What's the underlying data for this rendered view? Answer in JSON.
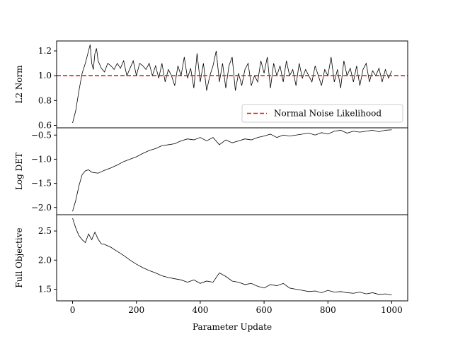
{
  "chart_data": [
    {
      "type": "line",
      "ylabel": "L2 Norm",
      "xlabel": "",
      "xlim": [
        -50,
        1050
      ],
      "ylim": [
        0.58,
        1.28
      ],
      "yticks": [
        0.6,
        0.8,
        1.0,
        1.2
      ],
      "ytick_labels": [
        "0.6",
        "0.8",
        "1.0",
        "1.2"
      ],
      "show_xticks": false,
      "series": [
        {
          "name": "",
          "color": "#000000",
          "x": [
            0,
            10,
            20,
            30,
            40,
            50,
            55,
            60,
            65,
            70,
            75,
            80,
            90,
            100,
            110,
            120,
            130,
            140,
            150,
            160,
            170,
            180,
            190,
            200,
            210,
            220,
            230,
            240,
            250,
            260,
            270,
            280,
            290,
            300,
            310,
            320,
            330,
            340,
            350,
            360,
            370,
            380,
            390,
            400,
            410,
            420,
            430,
            440,
            450,
            460,
            470,
            480,
            490,
            500,
            510,
            520,
            530,
            540,
            550,
            560,
            570,
            580,
            590,
            600,
            610,
            620,
            630,
            640,
            650,
            660,
            670,
            680,
            690,
            700,
            710,
            720,
            730,
            740,
            750,
            760,
            770,
            780,
            790,
            800,
            810,
            820,
            830,
            840,
            850,
            860,
            870,
            880,
            890,
            900,
            910,
            920,
            930,
            940,
            950,
            960,
            970,
            980,
            990,
            1000
          ],
          "y": [
            0.62,
            0.72,
            0.88,
            1.02,
            1.1,
            1.2,
            1.25,
            1.1,
            1.05,
            1.18,
            1.22,
            1.12,
            1.06,
            1.03,
            1.1,
            1.08,
            1.05,
            1.1,
            1.06,
            1.12,
            1.0,
            1.06,
            1.12,
            1.0,
            1.1,
            1.08,
            1.05,
            1.1,
            1.0,
            1.08,
            0.98,
            1.1,
            0.95,
            1.05,
            1.0,
            0.92,
            1.08,
            1.0,
            1.15,
            0.98,
            1.06,
            0.9,
            1.18,
            0.95,
            1.1,
            0.88,
            1.0,
            1.08,
            1.2,
            0.95,
            1.1,
            0.9,
            1.08,
            1.15,
            0.88,
            1.02,
            0.92,
            1.05,
            1.1,
            0.92,
            1.0,
            0.95,
            1.12,
            1.02,
            1.15,
            0.9,
            1.1,
            1.0,
            1.08,
            0.95,
            1.12,
            1.0,
            1.05,
            0.92,
            1.1,
            0.98,
            1.05,
            1.0,
            0.95,
            1.08,
            1.0,
            0.92,
            1.05,
            1.0,
            1.15,
            0.95,
            1.05,
            0.9,
            1.12,
            1.0,
            1.06,
            0.95,
            1.08,
            0.92,
            1.05,
            1.1,
            0.95,
            1.04,
            1.0,
            1.06,
            0.95,
            1.05,
            0.98,
            1.04
          ]
        },
        {
          "name": "Normal Noise Likelihood",
          "color": "#e31a1c",
          "dashed": true,
          "x": [
            -50,
            1050
          ],
          "y": [
            1.0,
            1.0
          ]
        }
      ],
      "legend": "lower-right"
    },
    {
      "type": "line",
      "ylabel": "Log DET",
      "xlabel": "",
      "xlim": [
        -50,
        1050
      ],
      "ylim": [
        -2.15,
        -0.35
      ],
      "yticks": [
        -2.0,
        -1.5,
        -1.0,
        -0.5
      ],
      "ytick_labels": [
        "−2.0",
        "−1.5",
        "−1.0",
        "−0.5"
      ],
      "show_xticks": false,
      "series": [
        {
          "name": "",
          "color": "#000000",
          "x": [
            0,
            10,
            20,
            30,
            40,
            50,
            60,
            70,
            80,
            90,
            100,
            120,
            140,
            160,
            180,
            200,
            220,
            240,
            260,
            280,
            300,
            320,
            340,
            360,
            380,
            400,
            420,
            440,
            460,
            480,
            500,
            520,
            540,
            560,
            580,
            600,
            620,
            640,
            660,
            680,
            700,
            720,
            740,
            760,
            780,
            800,
            820,
            840,
            860,
            880,
            900,
            920,
            940,
            960,
            980,
            1000
          ],
          "y": [
            -2.08,
            -1.85,
            -1.55,
            -1.32,
            -1.24,
            -1.22,
            -1.27,
            -1.28,
            -1.29,
            -1.26,
            -1.23,
            -1.18,
            -1.12,
            -1.05,
            -1.0,
            -0.95,
            -0.88,
            -0.82,
            -0.78,
            -0.72,
            -0.7,
            -0.68,
            -0.62,
            -0.58,
            -0.6,
            -0.55,
            -0.62,
            -0.55,
            -0.7,
            -0.6,
            -0.66,
            -0.62,
            -0.58,
            -0.6,
            -0.55,
            -0.52,
            -0.48,
            -0.55,
            -0.5,
            -0.52,
            -0.5,
            -0.48,
            -0.46,
            -0.5,
            -0.45,
            -0.48,
            -0.42,
            -0.4,
            -0.46,
            -0.42,
            -0.44,
            -0.42,
            -0.4,
            -0.43,
            -0.4,
            -0.39
          ]
        }
      ]
    },
    {
      "type": "line",
      "ylabel": "Full Objective",
      "xlabel": "Parameter Update",
      "xlim": [
        -50,
        1050
      ],
      "ylim": [
        1.3,
        2.78
      ],
      "yticks": [
        1.5,
        2.0,
        2.5
      ],
      "ytick_labels": [
        "1.5",
        "2.0",
        "2.5"
      ],
      "xticks": [
        0,
        200,
        400,
        600,
        800,
        1000
      ],
      "xtick_labels": [
        "0",
        "200",
        "400",
        "600",
        "800",
        "1000"
      ],
      "show_xticks": true,
      "series": [
        {
          "name": "",
          "color": "#000000",
          "x": [
            0,
            10,
            20,
            30,
            40,
            50,
            60,
            70,
            80,
            90,
            100,
            120,
            140,
            160,
            180,
            200,
            220,
            240,
            260,
            280,
            300,
            320,
            340,
            360,
            380,
            400,
            420,
            440,
            460,
            480,
            500,
            520,
            540,
            560,
            580,
            600,
            620,
            640,
            660,
            680,
            700,
            720,
            740,
            760,
            780,
            800,
            820,
            840,
            860,
            880,
            900,
            920,
            940,
            960,
            980,
            1000
          ],
          "y": [
            2.72,
            2.55,
            2.42,
            2.35,
            2.3,
            2.45,
            2.35,
            2.48,
            2.36,
            2.28,
            2.27,
            2.22,
            2.15,
            2.08,
            2.0,
            1.93,
            1.87,
            1.82,
            1.78,
            1.73,
            1.7,
            1.68,
            1.66,
            1.62,
            1.66,
            1.6,
            1.64,
            1.62,
            1.78,
            1.72,
            1.64,
            1.62,
            1.58,
            1.6,
            1.55,
            1.52,
            1.58,
            1.56,
            1.6,
            1.52,
            1.5,
            1.48,
            1.46,
            1.47,
            1.44,
            1.48,
            1.45,
            1.46,
            1.44,
            1.43,
            1.45,
            1.42,
            1.44,
            1.41,
            1.42,
            1.4
          ]
        }
      ]
    }
  ]
}
